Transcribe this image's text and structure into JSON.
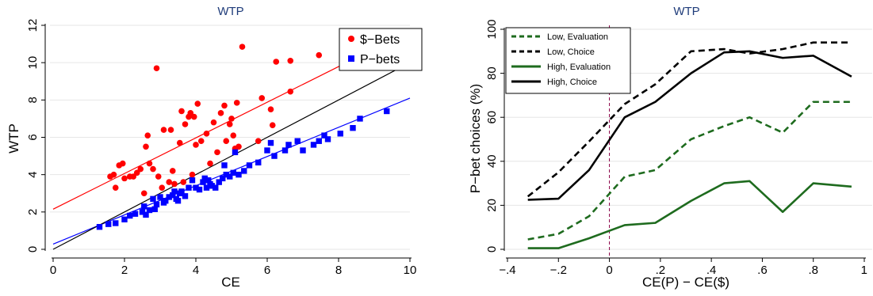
{
  "chart_data": [
    {
      "type": "scatter",
      "title": "WTP",
      "xlabel": "CE",
      "ylabel": "WTP",
      "xlim": [
        0,
        10
      ],
      "ylim": [
        0,
        12
      ],
      "x_ticks": [
        0,
        2,
        4,
        6,
        8,
        10
      ],
      "y_ticks": [
        0,
        2,
        4,
        6,
        8,
        10,
        12
      ],
      "grid": "horizontal",
      "legend_position": "top-right",
      "title_color": "#1f3c7a",
      "series": [
        {
          "name": "$−Bets",
          "color": "#ff0000",
          "marker": "circle",
          "points": [
            [
              1.6,
              3.9
            ],
            [
              1.7,
              4.0
            ],
            [
              1.75,
              3.3
            ],
            [
              1.85,
              4.5
            ],
            [
              1.95,
              4.6
            ],
            [
              2.0,
              3.8
            ],
            [
              2.15,
              3.9
            ],
            [
              2.25,
              3.9
            ],
            [
              2.35,
              4.1
            ],
            [
              2.45,
              4.3
            ],
            [
              2.55,
              3.0
            ],
            [
              2.6,
              5.5
            ],
            [
              2.65,
              6.1
            ],
            [
              2.7,
              4.6
            ],
            [
              2.8,
              4.3
            ],
            [
              2.9,
              9.7
            ],
            [
              2.95,
              3.9
            ],
            [
              3.05,
              3.3
            ],
            [
              3.1,
              6.4
            ],
            [
              3.25,
              3.6
            ],
            [
              3.3,
              6.4
            ],
            [
              3.35,
              4.2
            ],
            [
              3.4,
              3.5
            ],
            [
              3.55,
              5.7
            ],
            [
              3.6,
              7.4
            ],
            [
              3.65,
              3.6
            ],
            [
              3.7,
              6.7
            ],
            [
              3.8,
              7.1
            ],
            [
              3.85,
              7.3
            ],
            [
              3.9,
              4.0
            ],
            [
              3.95,
              7.1
            ],
            [
              4.0,
              5.6
            ],
            [
              4.05,
              7.8
            ],
            [
              4.15,
              5.8
            ],
            [
              4.3,
              6.2
            ],
            [
              4.4,
              4.6
            ],
            [
              4.5,
              6.8
            ],
            [
              4.6,
              5.2
            ],
            [
              4.7,
              7.3
            ],
            [
              4.8,
              7.7
            ],
            [
              4.85,
              5.8
            ],
            [
              4.95,
              6.7
            ],
            [
              5.0,
              7.0
            ],
            [
              5.05,
              6.1
            ],
            [
              5.1,
              5.4
            ],
            [
              5.15,
              7.85
            ],
            [
              5.2,
              5.5
            ],
            [
              5.3,
              10.85
            ],
            [
              5.75,
              5.8
            ],
            [
              5.85,
              8.1
            ],
            [
              6.15,
              6.65
            ],
            [
              6.1,
              7.5
            ],
            [
              6.25,
              10.05
            ],
            [
              6.65,
              8.45
            ],
            [
              6.65,
              10.1
            ],
            [
              7.45,
              10.4
            ]
          ]
        },
        {
          "name": "P−bets",
          "color": "#0000ff",
          "marker": "square",
          "points": [
            [
              1.3,
              1.2
            ],
            [
              1.55,
              1.35
            ],
            [
              1.75,
              1.4
            ],
            [
              2.0,
              1.6
            ],
            [
              2.15,
              1.8
            ],
            [
              2.3,
              1.9
            ],
            [
              2.5,
              2.0
            ],
            [
              2.55,
              2.3
            ],
            [
              2.6,
              1.85
            ],
            [
              2.7,
              2.1
            ],
            [
              2.8,
              2.7
            ],
            [
              2.85,
              2.15
            ],
            [
              2.9,
              2.4
            ],
            [
              3.0,
              2.8
            ],
            [
              3.1,
              2.5
            ],
            [
              3.15,
              2.6
            ],
            [
              3.25,
              2.8
            ],
            [
              3.35,
              2.9
            ],
            [
              3.4,
              3.1
            ],
            [
              3.45,
              2.7
            ],
            [
              3.5,
              2.6
            ],
            [
              3.55,
              3.0
            ],
            [
              3.6,
              3.1
            ],
            [
              3.7,
              2.85
            ],
            [
              3.8,
              3.3
            ],
            [
              3.9,
              3.7
            ],
            [
              4.0,
              3.3
            ],
            [
              4.1,
              3.2
            ],
            [
              4.2,
              3.6
            ],
            [
              4.25,
              3.8
            ],
            [
              4.3,
              3.3
            ],
            [
              4.35,
              3.7
            ],
            [
              4.4,
              3.5
            ],
            [
              4.45,
              3.4
            ],
            [
              4.55,
              3.3
            ],
            [
              4.65,
              3.6
            ],
            [
              4.75,
              3.8
            ],
            [
              4.8,
              4.5
            ],
            [
              4.85,
              4.0
            ],
            [
              4.95,
              3.9
            ],
            [
              5.05,
              4.1
            ],
            [
              5.1,
              5.2
            ],
            [
              5.2,
              4.0
            ],
            [
              5.35,
              4.2
            ],
            [
              5.5,
              4.5
            ],
            [
              5.75,
              4.65
            ],
            [
              6.0,
              5.3
            ],
            [
              6.1,
              5.7
            ],
            [
              6.2,
              5.0
            ],
            [
              6.5,
              5.3
            ],
            [
              6.6,
              5.6
            ],
            [
              6.85,
              5.8
            ],
            [
              7.0,
              5.3
            ],
            [
              7.3,
              5.6
            ],
            [
              7.45,
              5.8
            ],
            [
              7.6,
              6.1
            ],
            [
              7.7,
              5.9
            ],
            [
              8.05,
              6.2
            ],
            [
              8.4,
              6.5
            ],
            [
              8.6,
              7.0
            ],
            [
              9.35,
              7.4
            ]
          ]
        }
      ],
      "fit_lines": [
        {
          "color": "#ff0000",
          "x": [
            0,
            10
          ],
          "y": [
            2.15,
            11.7
          ]
        },
        {
          "color": "#0000ff",
          "x": [
            0,
            10
          ],
          "y": [
            0.28,
            8.1
          ]
        },
        {
          "color": "#000000",
          "x": [
            0,
            10
          ],
          "y": [
            0.0,
            10.0
          ]
        }
      ]
    },
    {
      "type": "line",
      "title": "WTP",
      "xlabel": "CE(P) − CE($)",
      "ylabel": "P−bet choices (%)",
      "xlim": [
        -0.4,
        1.0
      ],
      "ylim": [
        0,
        100
      ],
      "x_ticks": [
        -0.4,
        -0.2,
        0,
        0.2,
        0.4,
        0.6,
        0.8,
        1.0
      ],
      "x_tick_labels": [
        "−.4",
        "−.2",
        "0",
        ".2",
        ".4",
        ".6",
        ".8",
        "1"
      ],
      "y_ticks": [
        0,
        20,
        40,
        60,
        80,
        100
      ],
      "grid": "horizontal",
      "legend_position": "top-left",
      "title_color": "#1f3c7a",
      "reference_line": {
        "x": 0,
        "color": "#8b0046",
        "style": "dashed"
      },
      "x": [
        -0.32,
        -0.2,
        -0.08,
        0.06,
        0.18,
        0.32,
        0.45,
        0.55,
        0.68,
        0.8,
        0.95
      ],
      "series": [
        {
          "name": "Low, Evaluation",
          "color": "#1e6b1e",
          "dashed": true,
          "values": [
            4.5,
            7,
            15,
            33,
            36,
            50,
            56,
            60,
            53,
            67,
            67
          ]
        },
        {
          "name": "Low, Choice",
          "color": "#000000",
          "dashed": true,
          "values": [
            24,
            35,
            49,
            66,
            75,
            90,
            91,
            89,
            91,
            94,
            94
          ]
        },
        {
          "name": "High, Evaluation",
          "color": "#1e6b1e",
          "dashed": false,
          "values": [
            0.5,
            0.5,
            5,
            11,
            12,
            22,
            30,
            31,
            17,
            30,
            28.5
          ]
        },
        {
          "name": "High, Choice",
          "color": "#000000",
          "dashed": false,
          "values": [
            22.5,
            23,
            36,
            60,
            67,
            80,
            89.5,
            90,
            87,
            88,
            78.5
          ]
        }
      ]
    }
  ]
}
